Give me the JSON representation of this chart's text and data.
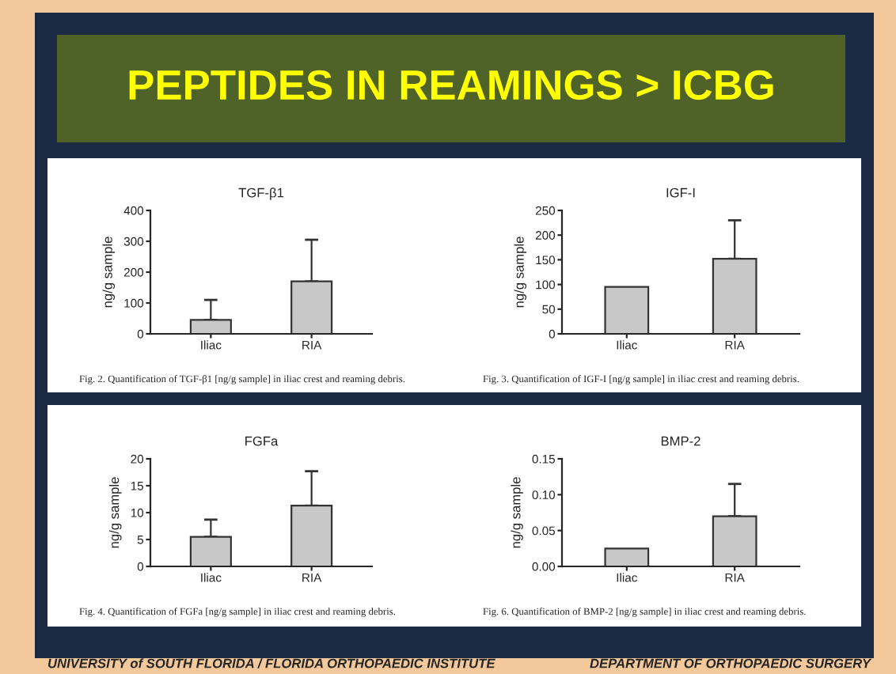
{
  "chart_data": [
    {
      "type": "bar",
      "title": "TGF-β1",
      "ylabel": "ng/g sample",
      "categories": [
        "Iliac",
        "RIA"
      ],
      "values": [
        45,
        170
      ],
      "errors": [
        [
          45,
          110
        ],
        [
          170,
          305
        ]
      ],
      "color": "#c8c8c8",
      "ylim": [
        0,
        400
      ],
      "yticks": [
        0,
        100,
        200,
        300,
        400
      ],
      "grid": false,
      "legend": false,
      "annotations": [
        "PEPTIDES IN REAMINGS > ICBG",
        "Fig. 2. Quantification of TGF-β1 [ng/g sample] in iliac crest and reaming debris."
      ]
    },
    {
      "type": "bar",
      "title": "IGF-I",
      "ylabel": "ng/g sample",
      "categories": [
        "Iliac",
        "RIA"
      ],
      "values": [
        95,
        152
      ],
      "errors": [
        null,
        [
          152,
          230
        ]
      ],
      "color": "#c8c8c8",
      "ylim": [
        0,
        250
      ],
      "yticks": [
        0,
        50,
        100,
        150,
        200,
        250
      ],
      "grid": false,
      "legend": false,
      "annotations": [
        "Fig. 3. Quantification of IGF-I [ng/g sample] in iliac crest and reaming debris."
      ]
    },
    {
      "type": "bar",
      "title": "FGFa",
      "ylabel": "ng/g sample",
      "categories": [
        "Iliac",
        "RIA"
      ],
      "values": [
        5.5,
        11.3
      ],
      "errors": [
        [
          5.5,
          8.7
        ],
        [
          11.3,
          17.7
        ]
      ],
      "color": "#c8c8c8",
      "ylim": [
        0,
        20
      ],
      "yticks": [
        0,
        5,
        10,
        15,
        20
      ],
      "grid": false,
      "legend": false,
      "annotations": [
        "Fig. 4. Quantification of FGFa [ng/g sample] in iliac crest and reaming debris."
      ]
    },
    {
      "type": "bar",
      "title": "BMP-2",
      "ylabel": "ng/g sample",
      "categories": [
        "Iliac",
        "RIA"
      ],
      "values": [
        0.025,
        0.07
      ],
      "errors": [
        null,
        [
          0.07,
          0.115
        ]
      ],
      "color": "#c8c8c8",
      "ylim": [
        0,
        0.15
      ],
      "yticks": [
        {
          "value": 0,
          "label": "0.00"
        },
        {
          "value": 0.05,
          "label": "0.05"
        },
        {
          "value": 0.1,
          "label": "0.10"
        },
        {
          "value": 0.15,
          "label": "0.15"
        }
      ],
      "grid": false,
      "legend": false,
      "annotations": [
        "Fig. 6. Quantification of BMP-2 [ng/g sample] in iliac crest and reaming debris.",
        "UNIVERSITY of SOUTH FLORIDA / FLORIDA ORTHOPAEDIC INSTITUTE",
        "DEPARTMENT OF ORTHOPAEDIC SURGERY"
      ]
    }
  ]
}
